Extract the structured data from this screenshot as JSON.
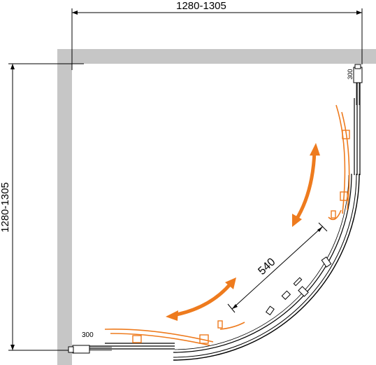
{
  "dimensions": {
    "width_label": "1280-1305",
    "height_label": "1280-1305",
    "door_width_label": "540",
    "fixed_panel_top_label": "300",
    "fixed_panel_bottom_label": "300"
  },
  "colors": {
    "wall": "#c6c6c6",
    "line": "#000000",
    "accent": "#ee7b1e"
  }
}
